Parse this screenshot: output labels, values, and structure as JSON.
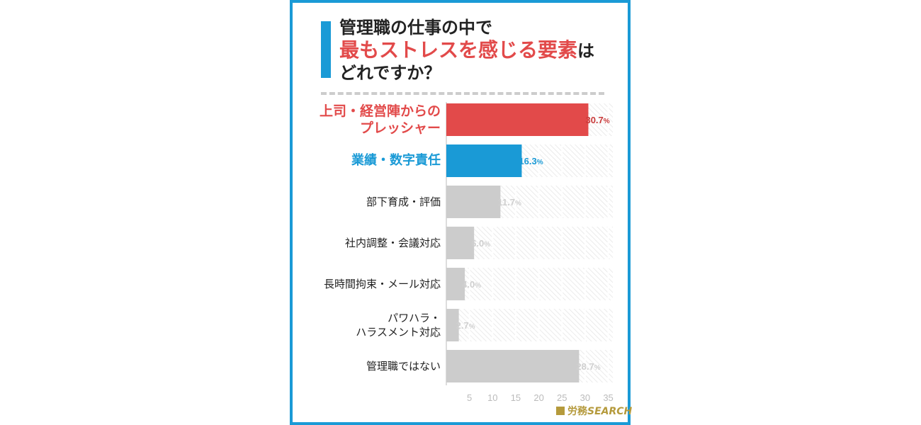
{
  "title": {
    "line1": "管理職の仕事の中で",
    "line2": "最もストレスを感じる要素",
    "line2_suffix": "は",
    "line3": "どれですか？"
  },
  "colors": {
    "frame": "#1a9ad6",
    "highlight_red": "#e24a4a",
    "highlight_blue": "#1a9ad6",
    "bar_default": "#cccccc"
  },
  "chart_data": {
    "type": "bar",
    "orientation": "horizontal",
    "categories": [
      [
        "上司・経営陣からの",
        "プレッシャー"
      ],
      [
        "業績・数字責任"
      ],
      [
        "部下育成・評価"
      ],
      [
        "社内調整・会議対応"
      ],
      [
        "長時間拘束・メール対応"
      ],
      [
        "パワハラ・",
        "ハラスメント対応"
      ],
      [
        "管理職ではない"
      ]
    ],
    "values": [
      30.7,
      16.3,
      11.7,
      6.0,
      4.0,
      2.7,
      28.7
    ],
    "value_labels": [
      "30.7%",
      "16.3%",
      "11.7%",
      "6.0%",
      "4.0%",
      "2.7%",
      "28.7%"
    ],
    "highlight": [
      "red",
      "blue",
      "none",
      "none",
      "none",
      "none",
      "none"
    ],
    "xticks": [
      "5",
      "10",
      "15",
      "20",
      "25",
      "30",
      "35"
    ],
    "xlim": [
      0,
      36
    ],
    "grid": true
  },
  "logo": {
    "jp": "労務",
    "en": "SEARCH"
  }
}
